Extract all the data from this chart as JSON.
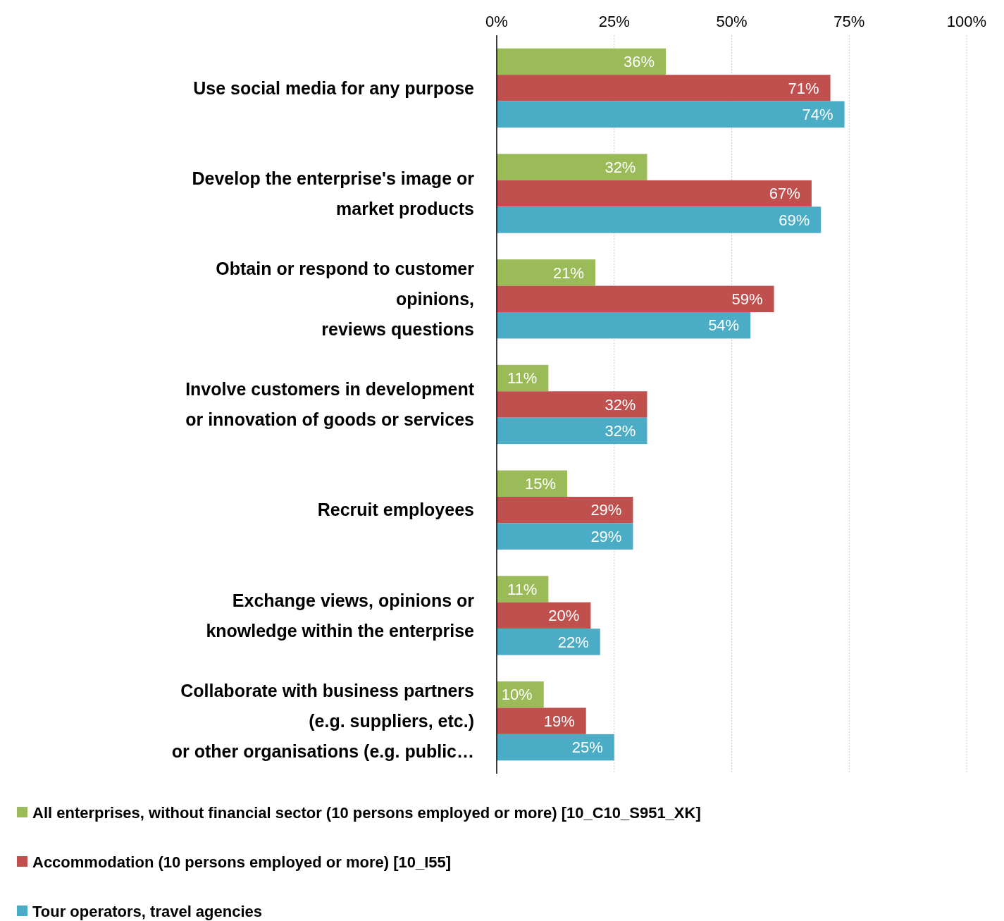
{
  "chart_data": {
    "type": "bar",
    "orientation": "horizontal",
    "categories": [
      "Use social media for any purpose",
      "Develop the enterprise's image or\nmarket products",
      "Obtain or respond to customer\nopinions,\nreviews questions",
      "Involve customers in development\nor innovation of goods or services",
      "Recruit employees",
      "Exchange views, opinions or\nknowledge within the enterprise",
      "Collaborate with business partners\n(e.g. suppliers, etc.)\nor other organisations (e.g. public…"
    ],
    "series": [
      {
        "name": "All enterprises, without financial sector (10 persons employed or more) [10_C10_S951_XK]",
        "color": "#9bbb59",
        "values": [
          36,
          32,
          21,
          11,
          15,
          11,
          10
        ],
        "value_labels": [
          "36%",
          "32%",
          "21%",
          "11%",
          "15%",
          "11%",
          "10%"
        ]
      },
      {
        "name": "Accommodation (10 persons employed or more) [10_I55]",
        "color": "#c0504d",
        "values": [
          71,
          67,
          59,
          32,
          29,
          20,
          19
        ],
        "value_labels": [
          "71%",
          "67%",
          "59%",
          "32%",
          "29%",
          "20%",
          "19%"
        ]
      },
      {
        "name": "Tour operators, travel agencies",
        "color": "#4bacc6",
        "values": [
          74,
          69,
          54,
          32,
          29,
          22,
          25
        ],
        "value_labels": [
          "74%",
          "69%",
          "54%",
          "32%",
          "29%",
          "22%",
          "25%"
        ]
      }
    ],
    "xlim": [
      0,
      100
    ],
    "xticks": [
      {
        "value": 0,
        "label": "0%"
      },
      {
        "value": 25,
        "label": "25%"
      },
      {
        "value": 50,
        "label": "50%"
      },
      {
        "value": 75,
        "label": "75%"
      },
      {
        "value": 100,
        "label": "100%"
      }
    ],
    "grid": "x",
    "legend": "bottom"
  }
}
